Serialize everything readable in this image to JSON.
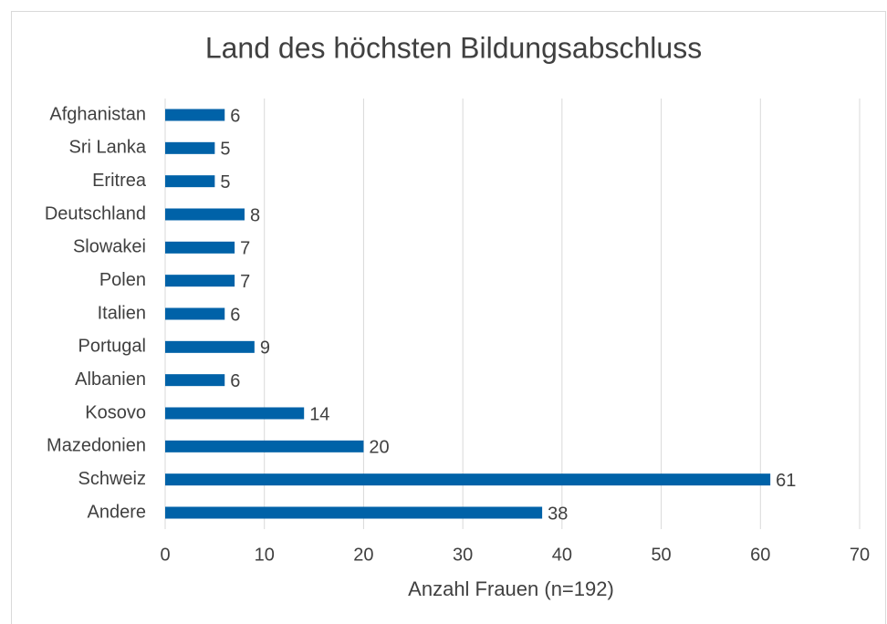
{
  "chart_data": {
    "type": "barh",
    "title": "Land des höchsten Bildungsabschluss",
    "categories": [
      "Afghanistan",
      "Sri Lanka",
      "Eritrea",
      "Deutschland",
      "Slowakei",
      "Polen",
      "Italien",
      "Portugal",
      "Albanien",
      "Kosovo",
      "Mazedonien",
      "Schweiz",
      "Andere"
    ],
    "values": [
      6,
      5,
      5,
      8,
      7,
      7,
      6,
      9,
      6,
      14,
      20,
      61,
      38
    ],
    "color": "#0062a8",
    "xlabel": "Anzahl Frauen (n=192)",
    "xlim": [
      0,
      70
    ],
    "xticks": [
      0,
      10,
      20,
      30,
      40,
      50,
      60,
      70
    ],
    "grid": true
  }
}
